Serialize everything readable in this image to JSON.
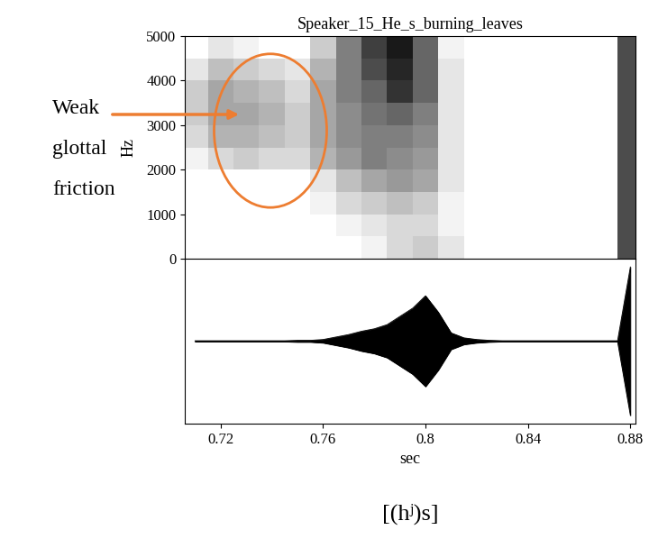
{
  "chart_data": [
    {
      "type": "heatmap",
      "title": "Speaker_15_He_s_burning_leaves",
      "y_label": "Hz",
      "annotation": "Weak\nglottal\nfriction",
      "xlim": [
        0.706,
        0.882
      ],
      "xticks": [],
      "ylim": [
        0,
        5000
      ],
      "yticks": [
        0,
        1000,
        2000,
        3000,
        4000,
        5000
      ],
      "tick_labels": "y",
      "x": [
        0.71,
        0.72,
        0.73,
        0.74,
        0.75,
        0.76,
        0.77,
        0.78,
        0.79,
        0.8,
        0.81,
        0.82,
        0.83,
        0.84,
        0.85,
        0.86,
        0.87,
        0.88
      ],
      "y": [
        250,
        750,
        1250,
        1750,
        2250,
        2750,
        3250,
        3750,
        4250,
        4750
      ],
      "cells": [
        [
          0,
          0,
          0,
          0,
          0,
          0,
          0,
          0.05,
          0.15,
          0.2,
          0.1,
          0,
          0,
          0,
          0,
          0,
          0,
          0.7
        ],
        [
          0,
          0,
          0,
          0,
          0,
          0,
          0.05,
          0.1,
          0.15,
          0.15,
          0.05,
          0,
          0,
          0,
          0,
          0,
          0,
          0.7
        ],
        [
          0,
          0,
          0,
          0,
          0,
          0.05,
          0.15,
          0.2,
          0.25,
          0.2,
          0.05,
          0,
          0,
          0,
          0,
          0,
          0,
          0.7
        ],
        [
          0,
          0,
          0,
          0,
          0,
          0.1,
          0.25,
          0.35,
          0.4,
          0.35,
          0.1,
          0,
          0,
          0,
          0,
          0,
          0,
          0.7
        ],
        [
          0.05,
          0.15,
          0.2,
          0.15,
          0.15,
          0.3,
          0.4,
          0.5,
          0.45,
          0.4,
          0.1,
          0,
          0,
          0,
          0,
          0,
          0,
          0.7
        ],
        [
          0.15,
          0.3,
          0.3,
          0.25,
          0.2,
          0.35,
          0.45,
          0.5,
          0.5,
          0.45,
          0.1,
          0,
          0,
          0,
          0,
          0,
          0,
          0.7
        ],
        [
          0.2,
          0.35,
          0.35,
          0.3,
          0.2,
          0.35,
          0.45,
          0.55,
          0.6,
          0.5,
          0.1,
          0,
          0,
          0,
          0,
          0,
          0,
          0.7
        ],
        [
          0.2,
          0.35,
          0.3,
          0.25,
          0.15,
          0.35,
          0.5,
          0.6,
          0.8,
          0.6,
          0.1,
          0,
          0,
          0,
          0,
          0,
          0,
          0.7
        ],
        [
          0.1,
          0.25,
          0.2,
          0.15,
          0.1,
          0.3,
          0.5,
          0.7,
          0.85,
          0.6,
          0.1,
          0,
          0,
          0,
          0,
          0,
          0,
          0.7
        ],
        [
          0,
          0.1,
          0.05,
          0,
          0,
          0.2,
          0.5,
          0.75,
          0.9,
          0.6,
          0.05,
          0,
          0,
          0,
          0,
          0,
          0,
          0.7
        ]
      ],
      "zlim": [
        0,
        1
      ]
    },
    {
      "type": "area",
      "x_label": "sec",
      "annotation": "[(hʲ)s]",
      "xlim": [
        0.706,
        0.882
      ],
      "xticks": [
        0.72,
        0.76,
        0.8,
        0.84,
        0.88
      ],
      "ylim": [
        -1,
        1
      ],
      "yticks": [],
      "tick_labels": "x",
      "color": "#000000",
      "x": [
        0.71,
        0.715,
        0.72,
        0.725,
        0.73,
        0.735,
        0.74,
        0.745,
        0.75,
        0.755,
        0.76,
        0.765,
        0.77,
        0.775,
        0.78,
        0.785,
        0.79,
        0.795,
        0.8,
        0.805,
        0.81,
        0.815,
        0.82,
        0.825,
        0.83,
        0.835,
        0.84,
        0.845,
        0.85,
        0.855,
        0.86,
        0.865,
        0.87,
        0.875,
        0.88
      ],
      "values": [
        0.005,
        0.005,
        0.005,
        0.005,
        0.005,
        0.005,
        0.005,
        0.005,
        0.01,
        0.01,
        0.02,
        0.05,
        0.08,
        0.12,
        0.15,
        0.2,
        0.3,
        0.4,
        0.55,
        0.35,
        0.1,
        0.04,
        0.02,
        0.01,
        0.005,
        0.005,
        0.005,
        0.005,
        0.005,
        0.005,
        0.005,
        0.005,
        0.005,
        0.005,
        0.9
      ]
    }
  ]
}
